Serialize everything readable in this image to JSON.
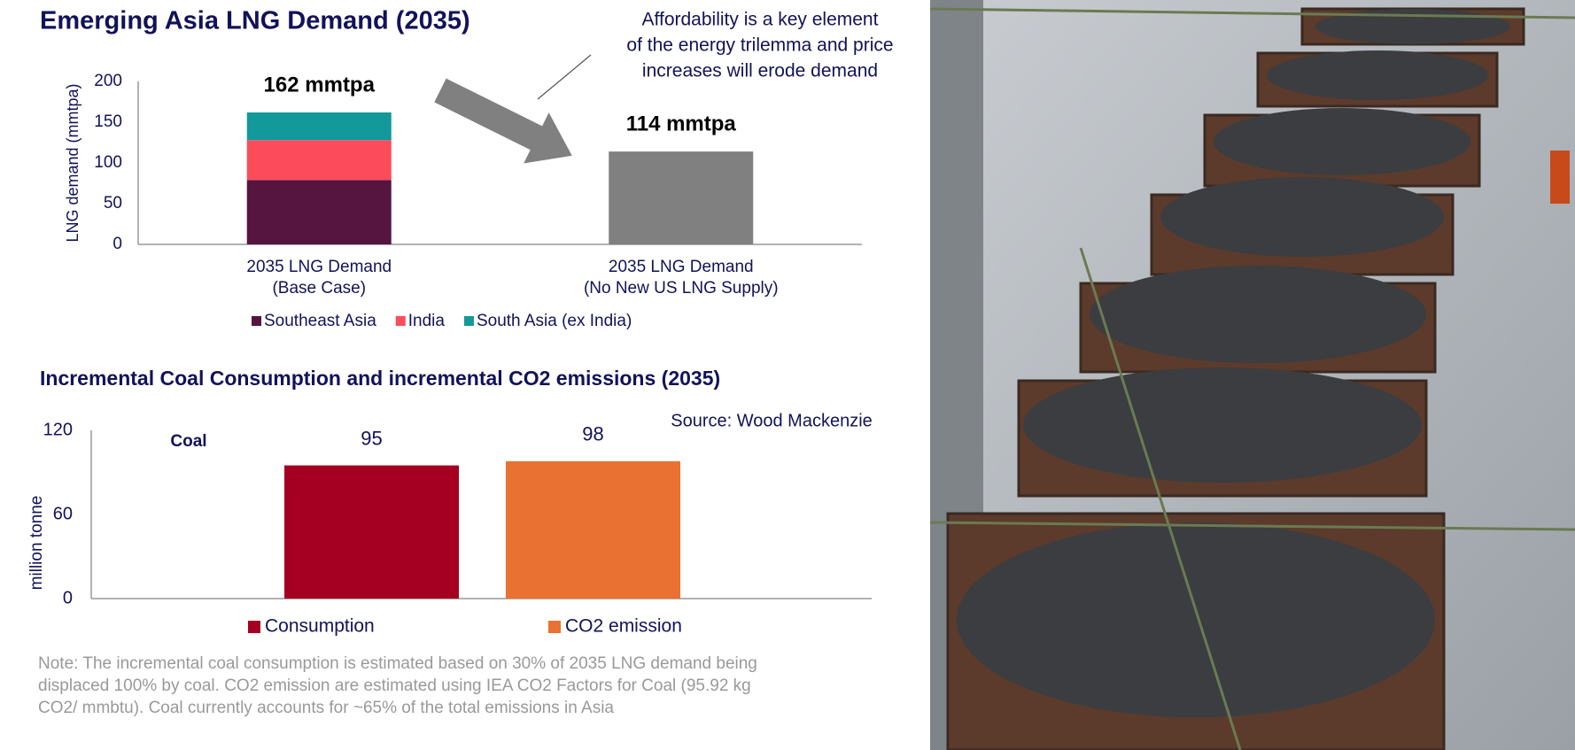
{
  "chart_data": [
    {
      "type": "stacked-bar",
      "title": "Emerging Asia LNG Demand (2035)",
      "ylabel": "LNG demand (mmtpa)",
      "categories": [
        [
          "2035 LNG Demand",
          "(Base Case)"
        ],
        [
          "2035 LNG Demand",
          "(No New US LNG Supply)"
        ]
      ],
      "series": [
        {
          "name": "Southeast Asia",
          "color": "#561440",
          "values": [
            79,
            null
          ]
        },
        {
          "name": "India",
          "color": "#fc4c5c",
          "values": [
            49,
            null
          ]
        },
        {
          "name": "South Asia (ex India)",
          "color": "#13999a",
          "values": [
            34,
            null
          ]
        },
        {
          "color": "#808080",
          "values": [
            null,
            114
          ]
        }
      ],
      "totals": [
        162,
        114
      ],
      "total_labels": [
        "162 mmtpa",
        "114 mmtpa"
      ],
      "ylim": [
        0,
        200
      ],
      "yticks": [
        0,
        50,
        100,
        150,
        200
      ],
      "annotation": [
        "Affordability is a key element",
        "of the energy trilemma and price",
        "increases will erode demand"
      ]
    },
    {
      "type": "bar",
      "title": "Incremental Coal Consumption and incremental CO2 emissions (2035)",
      "ylabel": "million tonne",
      "categories": [
        "Coal"
      ],
      "series": [
        {
          "name": "Consumption",
          "color": "#a50021",
          "values": [
            95
          ]
        },
        {
          "name": "CO2 emission",
          "color": "#e97132",
          "values": [
            98
          ]
        }
      ],
      "ylim": [
        0,
        120
      ],
      "yticks": [
        0,
        60,
        120
      ],
      "source": "Source: Wood Mackenzie",
      "note": [
        "Note: The incremental coal consumption is estimated based on 30% of 2035 LNG demand being",
        "displaced 100% by coal. CO2 emission are estimated using IEA CO2 Factors for Coal (95.92 kg",
        "CO2/ mmbtu). Coal currently accounts for ~65% of the total emissions in Asia"
      ]
    }
  ]
}
